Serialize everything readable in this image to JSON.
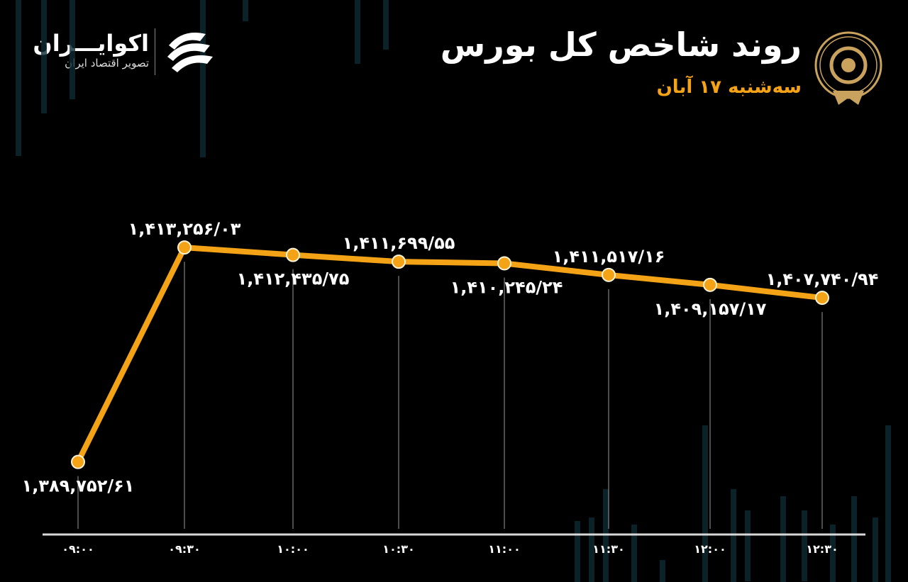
{
  "header": {
    "title": "روند شاخص کل بورس",
    "subtitle": "سه‌شنبه ۱۷ آبان"
  },
  "brand": {
    "name": "اکوایـــران",
    "tagline": "تصویر اقتصاد ایران"
  },
  "colors": {
    "line": "#f5a316",
    "background": "#000000",
    "text": "#ffffff",
    "subtitle": "#f5a316",
    "decor": "#0e2a33"
  },
  "chart_data": {
    "type": "line",
    "categories": [
      "۰۹:۰۰",
      "۰۹:۳۰",
      "۱۰:۰۰",
      "۱۰:۳۰",
      "۱۱:۰۰",
      "۱۱:۳۰",
      "۱۲:۰۰",
      "۱۲:۳۰"
    ],
    "values": [
      1389752.61,
      1413256.03,
      1412435.75,
      1411699.55,
      1411517.16,
      1410245.24,
      1409157.17,
      1407740.94
    ],
    "data_labels": [
      "۱,۳۸۹,۷۵۲/۶۱",
      "۱,۴۱۳,۲۵۶/۰۳",
      "۱,۴۱۲,۴۳۵/۷۵",
      "۱,۴۱۱,۶۹۹/۵۵",
      "۱,۴۱۱,۵۱۷/۱۶",
      "۱,۴۱۰,۲۴۵/۲۴",
      "۱,۴۰۹,۱۵۷/۱۷",
      "۱,۴۰۷,۷۴۰/۹۴"
    ],
    "title": "روند شاخص کل بورس",
    "xlabel": "",
    "ylabel": "",
    "ylim": [
      1386000,
      1418000
    ],
    "grid": false
  }
}
